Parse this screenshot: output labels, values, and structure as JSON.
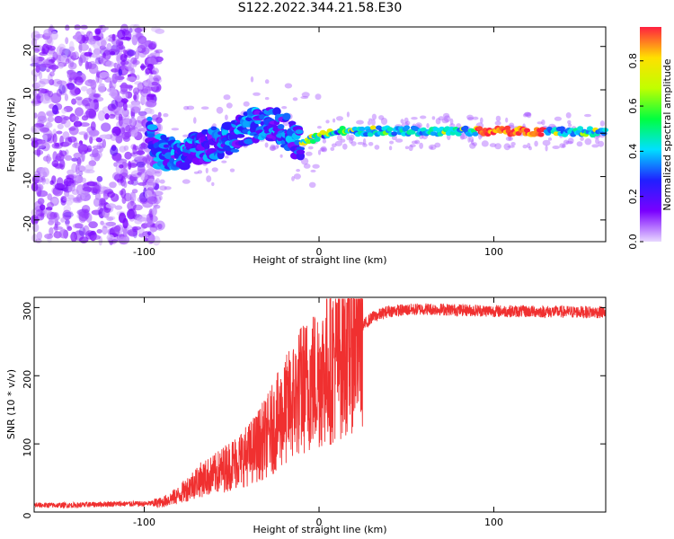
{
  "title": "S122.2022.344.21.58.E30",
  "colors": {
    "snr_line": "#f03030",
    "frame": "#000000",
    "background": "#ffffff"
  },
  "chart_data": [
    {
      "type": "heatmap",
      "title": "S122.2022.344.21.58.E30",
      "xlabel": "Height of straight line (km)",
      "ylabel": "Frequency (Hz)",
      "xlim": [
        -163,
        164
      ],
      "ylim": [
        -25,
        24.5
      ],
      "xticks": [
        -100,
        0,
        100
      ],
      "xtick_labels": [
        "-100",
        "0",
        "100"
      ],
      "yticks": [
        -20,
        -10,
        0,
        10,
        20
      ],
      "ytick_labels": [
        "-20",
        "-10",
        "0",
        "10",
        "20"
      ],
      "grid": false,
      "colorscale": {
        "label": "Normalized spectral amplitude",
        "range": [
          0,
          0.95
        ],
        "ticks": [
          0.0,
          0.2,
          0.4,
          0.6,
          0.8
        ],
        "tick_labels": [
          "0.0",
          "0.2",
          "0.4",
          "0.6",
          "0.8"
        ],
        "colors": [
          "#e8d8ff",
          "#7a00ff",
          "#2020ff",
          "#00e0ff",
          "#00ff40",
          "#c0ff00",
          "#ffe000",
          "#ff2040"
        ]
      },
      "ridge": [
        {
          "x": -95,
          "y": -4.0
        },
        {
          "x": -80,
          "y": -5.0
        },
        {
          "x": -65,
          "y": -3.0
        },
        {
          "x": -50,
          "y": -1.0
        },
        {
          "x": -40,
          "y": 1.5
        },
        {
          "x": -30,
          "y": 2.5
        },
        {
          "x": -20,
          "y": 1.0
        },
        {
          "x": -12,
          "y": -2.5
        },
        {
          "x": -5,
          "y": -1.5
        },
        {
          "x": 5,
          "y": 0.0
        },
        {
          "x": 15,
          "y": 0.5
        },
        {
          "x": 50,
          "y": 0.5
        },
        {
          "x": 100,
          "y": 0.5
        },
        {
          "x": 164,
          "y": 0.3
        }
      ]
    },
    {
      "type": "line",
      "xlabel": "Height of straight line (km)",
      "ylabel": "SNR (10 * v/v)",
      "xlim": [
        -163,
        164
      ],
      "ylim": [
        0,
        315
      ],
      "xticks": [
        -100,
        0,
        100
      ],
      "xtick_labels": [
        "-100",
        "0",
        "100"
      ],
      "yticks": [
        0,
        100,
        200,
        300
      ],
      "ytick_labels": [
        "0",
        "100",
        "200",
        "300"
      ],
      "grid": false,
      "series": [
        {
          "x": [
            -163,
            -140,
            -120,
            -100,
            -90,
            -80,
            -70,
            -60,
            -50,
            -40,
            -30,
            -20,
            -10,
            0,
            10,
            20,
            30,
            40,
            60,
            100,
            164
          ],
          "values": [
            10,
            10,
            12,
            12,
            14,
            25,
            45,
            55,
            70,
            85,
            110,
            145,
            180,
            200,
            225,
            260,
            285,
            295,
            298,
            295,
            293
          ]
        }
      ]
    }
  ]
}
